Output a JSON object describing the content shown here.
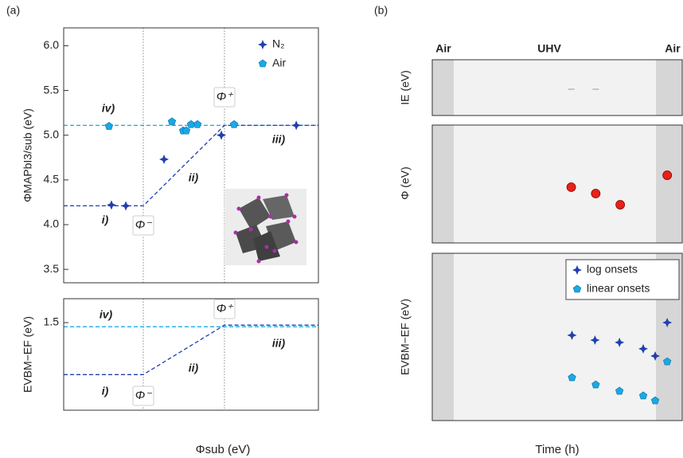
{
  "panel_labels": [
    "(a)",
    "(b)"
  ],
  "chart_data": [
    {
      "type": "scatter",
      "ylabel": "ΦMAPbI3/sub (eV)",
      "xlim": [
        0,
        10
      ],
      "ylim": [
        3.35,
        6.2
      ],
      "yticks": [
        {
          "value": 3.5,
          "label": "3.5"
        },
        {
          "value": 4,
          "label": "4.0"
        },
        {
          "value": 4.5,
          "label": "4.5"
        },
        {
          "value": 5,
          "label": "5.0"
        },
        {
          "value": 5.5,
          "label": "5.5"
        },
        {
          "value": 6,
          "label": "6.0"
        }
      ],
      "legend": "upper right",
      "vlines": [
        3.125,
        6.31
      ],
      "lines": [
        {
          "color": "#19a9e6",
          "x": [
            0,
            10
          ],
          "y": [
            5.11,
            5.11
          ]
        },
        {
          "color": "#1f3fb0",
          "x": [
            0,
            3.125,
            6.31,
            10
          ],
          "y": [
            4.21,
            4.21,
            5.11,
            5.11
          ]
        }
      ],
      "series": [
        {
          "name": "N₂",
          "color": "#1f3fb0",
          "marker": "star",
          "x": [
            1.875,
            2.44,
            3.94,
            6.19,
            9.13
          ],
          "values": [
            4.22,
            4.21,
            4.73,
            5.0,
            5.11
          ]
        },
        {
          "name": "Air",
          "color": "#19a9e6",
          "marker": "pentagon",
          "x": [
            1.78,
            4.25,
            4.69,
            4.81,
            5.0,
            5.25,
            6.69
          ],
          "values": [
            5.1,
            5.15,
            5.05,
            5.05,
            5.12,
            5.12,
            5.12
          ]
        }
      ],
      "annotations": [
        "iv)",
        "ii)",
        "iii)",
        "i)",
        "Φ⁻",
        "Φ⁺"
      ]
    },
    {
      "type": "line",
      "ylabel": "EVBM−EF (eV)",
      "xlabel": "Φsub (eV)",
      "xlim": [
        0,
        10
      ],
      "ylim": [
        -0.22,
        1.97
      ],
      "yticks": [
        {
          "value": 1.5,
          "label": "1.5"
        }
      ],
      "vlines": [
        3.125,
        6.31
      ],
      "lines": [
        {
          "color": "#19a9e6",
          "x": [
            0,
            10
          ],
          "y": [
            1.42,
            1.42
          ]
        },
        {
          "color": "#1f3fb0",
          "x": [
            0,
            3.125,
            6.31,
            10
          ],
          "y": [
            0.48,
            0.48,
            1.45,
            1.45
          ]
        }
      ],
      "series": [],
      "annotations": [
        "iv)",
        "iii)",
        "ii)",
        "i)",
        "Φ⁻",
        "Φ⁺"
      ]
    },
    {
      "type": "scatter",
      "ylabel": "IE (eV)",
      "xlim": [
        0,
        10
      ],
      "ylim": [
        0,
        10
      ],
      "yticks": [],
      "shaded": [
        [
          0,
          0.86
        ],
        [
          8.95,
          10
        ]
      ],
      "series": [
        {
          "color": "#aaaaaa",
          "marker": "dash",
          "x": [
            5.56,
            6.54
          ],
          "values": [
            4.71,
            4.71
          ]
        }
      ],
      "annotations": [
        "Air",
        "UHV",
        "Air"
      ]
    },
    {
      "type": "scatter",
      "ylabel": "Φ (eV)",
      "xlim": [
        0,
        10
      ],
      "ylim": [
        0,
        10
      ],
      "yticks": [],
      "shaded": [
        [
          0,
          0.86
        ],
        [
          8.95,
          10
        ]
      ],
      "series": [
        {
          "color": "#e8211a",
          "marker": "circle",
          "x": [
            5.56,
            6.54,
            7.52,
            9.4
          ],
          "values": [
            4.73,
            4.19,
            3.24,
            5.74
          ]
        }
      ],
      "annotations": []
    },
    {
      "type": "scatter",
      "ylabel": "EVBM−EF (eV)",
      "xlabel": "Time (h)",
      "xlim": [
        0,
        10
      ],
      "ylim": [
        0,
        10
      ],
      "yticks": [],
      "shaded": [
        [
          0,
          0.86
        ],
        [
          8.95,
          10
        ]
      ],
      "legend": "upper right",
      "series": [
        {
          "name": "log onsets",
          "color": "#1f3fb0",
          "marker": "star",
          "x": [
            5.59,
            6.51,
            7.49,
            8.44,
            8.92,
            9.4
          ],
          "values": [
            5.1,
            4.81,
            4.67,
            4.29,
            3.86,
            5.86
          ]
        },
        {
          "name": "linear onsets",
          "color": "#19a9e6",
          "marker": "pentagon",
          "x": [
            5.59,
            6.54,
            7.49,
            8.44,
            8.92,
            9.4
          ],
          "values": [
            2.57,
            2.14,
            1.76,
            1.48,
            1.19,
            3.52
          ]
        }
      ],
      "annotations": []
    }
  ]
}
